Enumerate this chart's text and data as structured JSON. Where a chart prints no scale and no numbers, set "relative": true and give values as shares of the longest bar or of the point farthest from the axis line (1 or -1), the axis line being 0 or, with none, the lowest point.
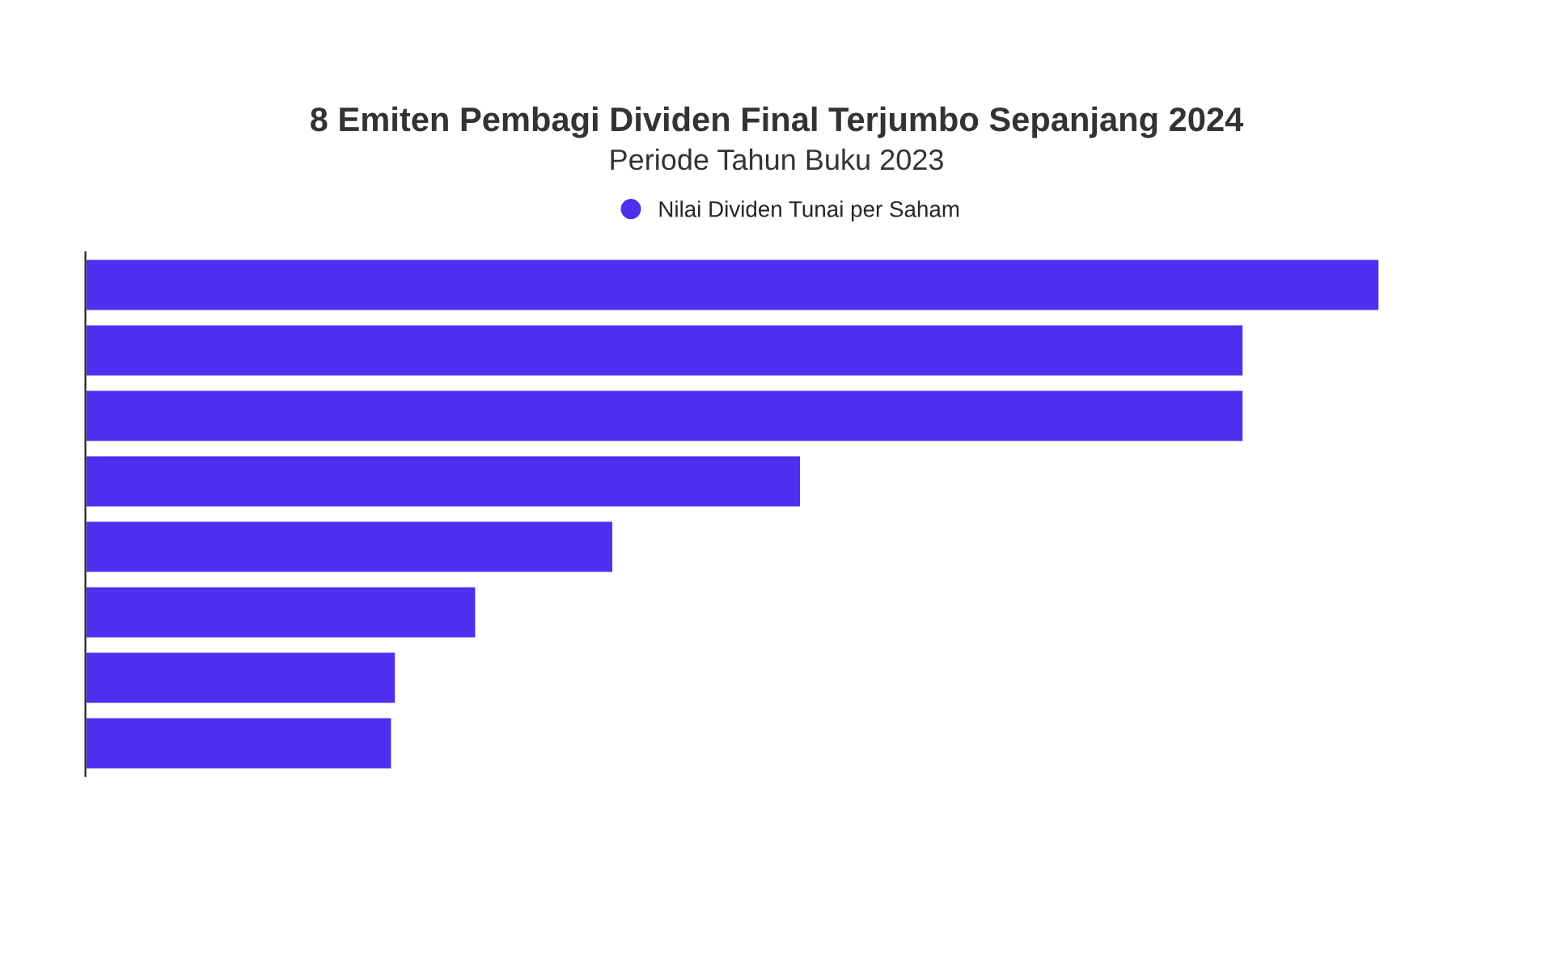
{
  "chart_data": {
    "type": "bar",
    "title": "8 Emiten Pembagi Dividen Final Terjumbo Sepanjang 2024",
    "subtitle": "Periode Tahun Buku 2023",
    "orientation": "horizontal",
    "relative": true,
    "legend": "top",
    "categories": [
      null,
      null,
      null,
      null,
      null,
      null,
      null,
      null
    ],
    "series": [
      {
        "name": "Nilai Dividen Tunai per Saham",
        "color": "#4f2ff0",
        "values": [
          1,
          0.895,
          0.895,
          0.553,
          0.408,
          0.302,
          0.24,
          0.237
        ]
      }
    ]
  }
}
